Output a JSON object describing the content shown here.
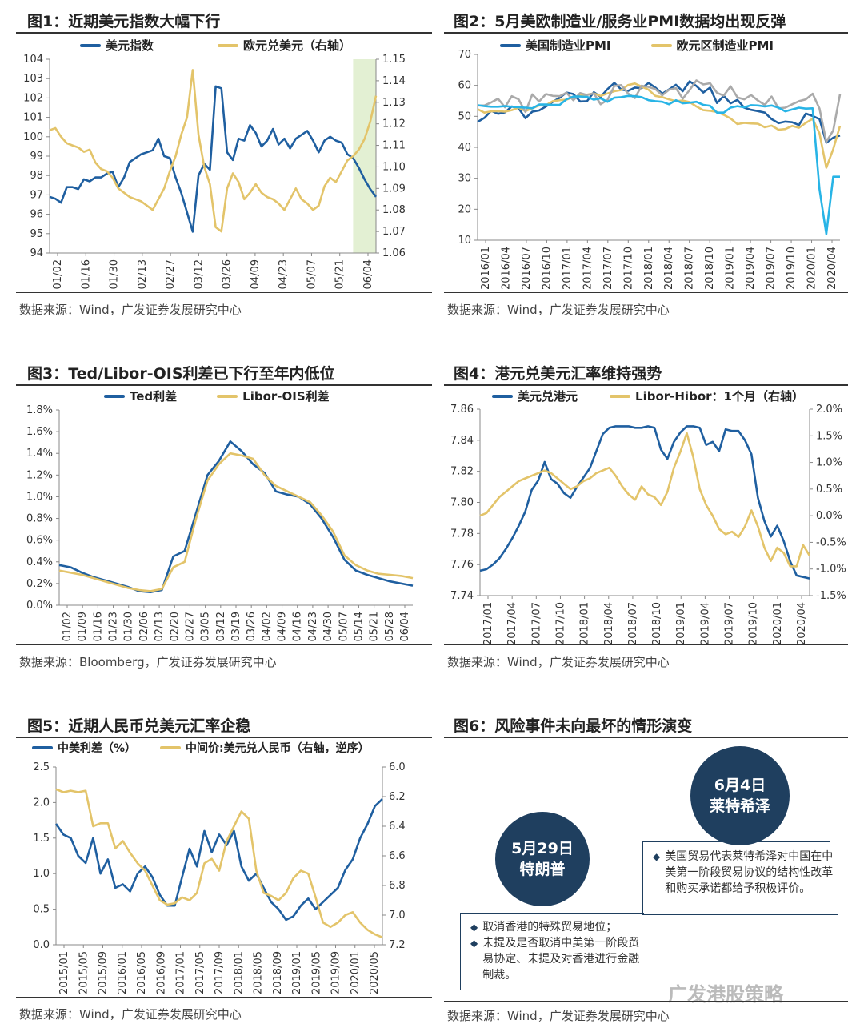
{
  "panels": {
    "p1": {
      "title": "图1：近期美元指数大幅下行",
      "source": "数据来源：Wind，广发证券发展研究中心"
    },
    "p2": {
      "title": "图2：5月美欧制造业/服务业PMI数据均出现反弹",
      "source": "数据来源：Wind，广发证券发展研究中心"
    },
    "p3": {
      "title": "图3：Ted/Libor-OIS利差已下行至年内低位",
      "source": "数据来源：Bloomberg，广发证券发展研究中心"
    },
    "p4": {
      "title": "图4：港元兑美元汇率维持强势",
      "source": "数据来源：Wind，广发证券发展研究中心"
    },
    "p5": {
      "title": "图5：近期人民币兑美元汇率企稳",
      "source": "数据来源：Wind，广发证券发展研究中心"
    },
    "p6": {
      "title": "图6：风险事件未向最坏的情形演变",
      "source": "数据来源：Wind，广发证券发展研究中心"
    }
  },
  "colors": {
    "blue": "#1f5fa0",
    "gold": "#e3c46a",
    "gray": "#aaaaaa",
    "cyan": "#28b4e6",
    "highlight": "#e3f0d3",
    "navy": "#1f3f5f"
  },
  "chart_data": [
    {
      "id": "p1",
      "type": "line",
      "ylim": [
        94,
        104
      ],
      "y2lim": [
        1.06,
        1.15
      ],
      "yticks": [
        "94",
        "95",
        "96",
        "97",
        "98",
        "99",
        "100",
        "101",
        "102",
        "103",
        "104"
      ],
      "y2ticks": [
        "1.06",
        "1.07",
        "1.08",
        "1.09",
        "1.10",
        "1.11",
        "1.12",
        "1.13",
        "1.14",
        "1.15"
      ],
      "xticks": [
        "01/02",
        "01/16",
        "01/30",
        "02/13",
        "02/27",
        "03/12",
        "03/26",
        "04/09",
        "04/23",
        "05/07",
        "05/21",
        "06/04"
      ],
      "series": [
        {
          "name": "美元指数",
          "axis": "left",
          "values": [
            96.9,
            96.8,
            96.6,
            97.4,
            97.4,
            97.3,
            97.8,
            97.7,
            97.9,
            97.9,
            98.1,
            98.2,
            97.4,
            97.9,
            98.7,
            98.9,
            99.1,
            99.2,
            99.3,
            99.9,
            99.0,
            98.9,
            97.9,
            97.1,
            96.1,
            95.1,
            98.0,
            98.6,
            98.3,
            102.6,
            102.5,
            99.2,
            98.8,
            99.9,
            99.8,
            100.6,
            100.2,
            99.5,
            99.8,
            100.4,
            99.6,
            99.9,
            99.4,
            99.9,
            100.1,
            100.3,
            99.8,
            99.2,
            99.8,
            100.0,
            99.8,
            99.7,
            99.1,
            98.9,
            98.4,
            97.8,
            97.3,
            96.9
          ]
        },
        {
          "name": "欧元兑美元（右轴）",
          "axis": "right",
          "values": [
            1.117,
            1.118,
            1.114,
            1.111,
            1.11,
            1.109,
            1.107,
            1.108,
            1.102,
            1.099,
            1.098,
            1.095,
            1.09,
            1.088,
            1.086,
            1.085,
            1.084,
            1.082,
            1.08,
            1.085,
            1.09,
            1.098,
            1.105,
            1.115,
            1.123,
            1.145,
            1.115,
            1.1,
            1.092,
            1.072,
            1.07,
            1.09,
            1.097,
            1.093,
            1.085,
            1.088,
            1.092,
            1.088,
            1.086,
            1.085,
            1.083,
            1.08,
            1.085,
            1.09,
            1.085,
            1.083,
            1.08,
            1.082,
            1.091,
            1.095,
            1.093,
            1.098,
            1.103,
            1.105,
            1.108,
            1.113,
            1.121,
            1.133
          ]
        }
      ],
      "highlight": {
        "from_index": 53,
        "to_index": 57
      }
    },
    {
      "id": "p2",
      "type": "line",
      "ylim": [
        10,
        70
      ],
      "yticks": [
        "10",
        "20",
        "30",
        "40",
        "50",
        "60",
        "70"
      ],
      "xticks": [
        "2016/01",
        "2016/04",
        "2016/07",
        "2016/10",
        "2017/01",
        "2017/04",
        "2017/07",
        "2017/10",
        "2018/01",
        "2018/04",
        "2018/07",
        "2018/10",
        "2019/01",
        "2019/04",
        "2019/07",
        "2019/10",
        "2020/01",
        "2020/04"
      ],
      "series": [
        {
          "name": "美国制造业PMI",
          "values": [
            48.2,
            49.5,
            51.8,
            50.8,
            51.3,
            53.2,
            52.6,
            49.4,
            51.5,
            51.9,
            53.2,
            54.7,
            56.0,
            57.7,
            57.2,
            54.8,
            54.9,
            57.8,
            56.3,
            58.8,
            60.8,
            58.7,
            58.2,
            59.3,
            59.1,
            60.8,
            59.3,
            57.3,
            58.7,
            60.2,
            58.1,
            61.3,
            59.8,
            57.7,
            59.3,
            54.3,
            56.6,
            54.2,
            55.3,
            52.8,
            52.1,
            51.7,
            51.2,
            49.1,
            47.8,
            48.3,
            48.1,
            47.2,
            50.9,
            50.1,
            49.1,
            41.5,
            43.1,
            43.8
          ]
        },
        {
          "name": "欧元区制造业PMI",
          "values": [
            52.3,
            51.2,
            51.6,
            51.7,
            51.5,
            52.0,
            52.8,
            51.7,
            52.6,
            53.5,
            53.6,
            54.9,
            55.2,
            55.4,
            56.2,
            56.7,
            57.0,
            57.4,
            56.6,
            57.4,
            58.1,
            58.5,
            60.1,
            60.6,
            59.6,
            58.6,
            56.6,
            56.2,
            55.5,
            54.9,
            55.1,
            54.6,
            53.2,
            52.0,
            51.8,
            51.4,
            50.5,
            49.3,
            47.5,
            47.9,
            47.7,
            47.6,
            46.5,
            47.0,
            45.7,
            45.9,
            46.9,
            46.3,
            47.9,
            49.2,
            44.5,
            33.4,
            39.4,
            46.9
          ]
        },
        {
          "name": "美国服务业PMI",
          "values": [
            53.5,
            53.5,
            54.5,
            55.7,
            52.9,
            56.5,
            55.5,
            51.4,
            57.1,
            54.8,
            57.2,
            56.6,
            56.5,
            57.6,
            55.2,
            57.5,
            56.9,
            57.4,
            53.9,
            55.3,
            59.8,
            60.1,
            57.4,
            55.9,
            59.9,
            59.5,
            58.8,
            56.8,
            58.6,
            59.1,
            55.7,
            58.5,
            61.6,
            60.3,
            60.7,
            57.6,
            56.7,
            59.7,
            56.1,
            55.5,
            56.9,
            55.1,
            53.7,
            56.4,
            52.6,
            52.8,
            53.9,
            54.9,
            55.5,
            57.3,
            52.5,
            41.8,
            45.4,
            57.1
          ]
        },
        {
          "name": "欧元区服务业PMI",
          "values": [
            53.6,
            53.3,
            53.1,
            53.1,
            53.3,
            53.1,
            52.9,
            52.8,
            52.6,
            53.8,
            53.8,
            53.7,
            53.7,
            55.5,
            56.4,
            56.4,
            56.3,
            55.4,
            55.8,
            54.7,
            56.0,
            56.2,
            56.6,
            56.5,
            56.2,
            55.2,
            54.9,
            54.7,
            53.9,
            55.2,
            54.2,
            54.4,
            54.7,
            53.7,
            53.4,
            51.2,
            51.2,
            52.8,
            53.3,
            52.9,
            53.6,
            53.5,
            53.2,
            53.5,
            52.8,
            51.6,
            52.2,
            52.8,
            52.5,
            52.6,
            26.4,
            12.0,
            30.5,
            30.5
          ]
        }
      ]
    },
    {
      "id": "p3",
      "type": "line",
      "ylim": [
        0,
        1.8
      ],
      "yticks": [
        "0.0%",
        "0.2%",
        "0.4%",
        "0.6%",
        "0.8%",
        "1.0%",
        "1.2%",
        "1.4%",
        "1.6%",
        "1.8%"
      ],
      "xticks": [
        "01/02",
        "01/09",
        "01/16",
        "01/23",
        "01/30",
        "02/06",
        "02/13",
        "02/20",
        "02/27",
        "03/05",
        "03/12",
        "03/19",
        "03/26",
        "04/02",
        "04/09",
        "04/16",
        "04/23",
        "04/30",
        "05/07",
        "05/14",
        "05/21",
        "05/28",
        "06/04"
      ],
      "series": [
        {
          "name": "Ted利差",
          "values": [
            0.37,
            0.35,
            0.3,
            0.26,
            0.23,
            0.2,
            0.17,
            0.13,
            0.12,
            0.14,
            0.45,
            0.5,
            0.85,
            1.2,
            1.33,
            1.51,
            1.42,
            1.3,
            1.22,
            1.05,
            1.02,
            1.0,
            0.93,
            0.8,
            0.63,
            0.42,
            0.32,
            0.28,
            0.25,
            0.22,
            0.2,
            0.18
          ]
        },
        {
          "name": "Libor-OIS利差",
          "values": [
            0.32,
            0.3,
            0.28,
            0.25,
            0.22,
            0.19,
            0.16,
            0.14,
            0.13,
            0.15,
            0.35,
            0.4,
            0.8,
            1.15,
            1.3,
            1.4,
            1.38,
            1.35,
            1.2,
            1.1,
            1.05,
            1.0,
            0.95,
            0.83,
            0.68,
            0.46,
            0.37,
            0.32,
            0.29,
            0.28,
            0.27,
            0.25
          ]
        }
      ]
    },
    {
      "id": "p4",
      "type": "line",
      "ylim": [
        7.74,
        7.86
      ],
      "y2lim": [
        -1.5,
        2.0
      ],
      "yticks": [
        "7.74",
        "7.76",
        "7.78",
        "7.80",
        "7.82",
        "7.84",
        "7.86"
      ],
      "y2ticks": [
        "-1.5%",
        "-1.0%",
        "-0.5%",
        "0.0%",
        "0.5%",
        "1.0%",
        "1.5%",
        "2.0%"
      ],
      "xticks": [
        "2017/01",
        "2017/04",
        "2017/07",
        "2017/10",
        "2018/01",
        "2018/04",
        "2018/07",
        "2018/10",
        "2019/01",
        "2019/04",
        "2019/07",
        "2019/10",
        "2020/01",
        "2020/04"
      ],
      "series": [
        {
          "name": "美元兑港元",
          "axis": "left",
          "values": [
            7.756,
            7.757,
            7.76,
            7.764,
            7.77,
            7.777,
            7.785,
            7.794,
            7.808,
            7.814,
            7.826,
            7.815,
            7.812,
            7.806,
            7.803,
            7.81,
            7.816,
            7.822,
            7.833,
            7.844,
            7.848,
            7.849,
            7.849,
            7.849,
            7.848,
            7.848,
            7.849,
            7.848,
            7.834,
            7.828,
            7.839,
            7.845,
            7.849,
            7.849,
            7.848,
            7.837,
            7.839,
            7.833,
            7.847,
            7.846,
            7.846,
            7.84,
            7.831,
            7.803,
            7.788,
            7.778,
            7.785,
            7.775,
            7.762,
            7.753,
            7.752,
            7.751
          ]
        },
        {
          "name": "Libor-Hibor：1个月（右轴）",
          "axis": "right",
          "values": [
            0.0,
            0.05,
            0.2,
            0.35,
            0.45,
            0.55,
            0.65,
            0.7,
            0.75,
            0.8,
            0.85,
            0.8,
            0.7,
            0.6,
            0.5,
            0.55,
            0.65,
            0.7,
            0.8,
            0.85,
            0.9,
            0.75,
            0.55,
            0.4,
            0.3,
            0.55,
            0.4,
            0.35,
            0.2,
            0.45,
            0.9,
            1.2,
            1.55,
            1.1,
            0.5,
            0.2,
            0.0,
            -0.25,
            -0.35,
            -0.3,
            -0.4,
            -0.2,
            0.1,
            -0.2,
            -0.6,
            -0.85,
            -0.6,
            -0.7,
            -0.95,
            -0.95,
            -0.55,
            -0.75
          ]
        }
      ]
    },
    {
      "id": "p5",
      "type": "line",
      "ylim": [
        0,
        2.5
      ],
      "y2lim": [
        6.0,
        7.2
      ],
      "y2reverse": true,
      "yticks": [
        "0.0",
        "0.5",
        "1.0",
        "1.5",
        "2.0",
        "2.5"
      ],
      "y2ticks": [
        "6.0",
        "6.2",
        "6.4",
        "6.6",
        "6.8",
        "7.0",
        "7.2"
      ],
      "xticks": [
        "2015/01",
        "2015/05",
        "2015/09",
        "2016/01",
        "2016/05",
        "2016/09",
        "2017/01",
        "2017/05",
        "2017/09",
        "2018/01",
        "2018/05",
        "2018/09",
        "2019/01",
        "2019/05",
        "2019/09",
        "2020/01",
        "2020/05"
      ],
      "series": [
        {
          "name": "中美利差（%）",
          "axis": "left",
          "values": [
            1.7,
            1.55,
            1.5,
            1.25,
            1.15,
            1.5,
            1.0,
            1.2,
            0.8,
            0.85,
            0.75,
            1.0,
            1.1,
            0.95,
            0.7,
            0.55,
            0.55,
            0.95,
            1.35,
            1.1,
            1.6,
            1.3,
            1.55,
            1.4,
            1.6,
            1.1,
            0.9,
            1.0,
            0.8,
            0.6,
            0.5,
            0.35,
            0.4,
            0.55,
            0.65,
            0.5,
            0.6,
            0.7,
            0.8,
            1.05,
            1.2,
            1.5,
            1.7,
            1.95,
            2.05
          ]
        },
        {
          "name": "中间价:美元兑人民币（右轴，逆序）",
          "axis": "right",
          "values": [
            6.15,
            6.17,
            6.16,
            6.17,
            6.16,
            6.4,
            6.38,
            6.38,
            6.55,
            6.5,
            6.58,
            6.65,
            6.7,
            6.8,
            6.9,
            6.93,
            6.92,
            6.88,
            6.9,
            6.85,
            6.65,
            6.62,
            6.7,
            6.5,
            6.4,
            6.3,
            6.35,
            6.7,
            6.85,
            6.87,
            6.9,
            6.85,
            6.75,
            6.7,
            6.72,
            6.88,
            7.05,
            7.08,
            7.05,
            7.0,
            6.98,
            7.05,
            7.1,
            7.13,
            7.15
          ]
        }
      ]
    }
  ],
  "p6": {
    "event1": {
      "date": "5月29日",
      "name": "特朗普",
      "bullets": [
        "取消香港的特殊贸易地位；",
        "未提及是否取消中美第一阶段贸易协定、未提及对香港进行金融制裁。"
      ]
    },
    "event2": {
      "date": "6月4日",
      "name": "莱特希泽",
      "bullets": [
        "美国贸易代表莱特希泽对中国在中美第一阶段贸易协议的结构性改革和购买承诺都给予积极评价。"
      ]
    },
    "watermark": "广发港股策略"
  }
}
